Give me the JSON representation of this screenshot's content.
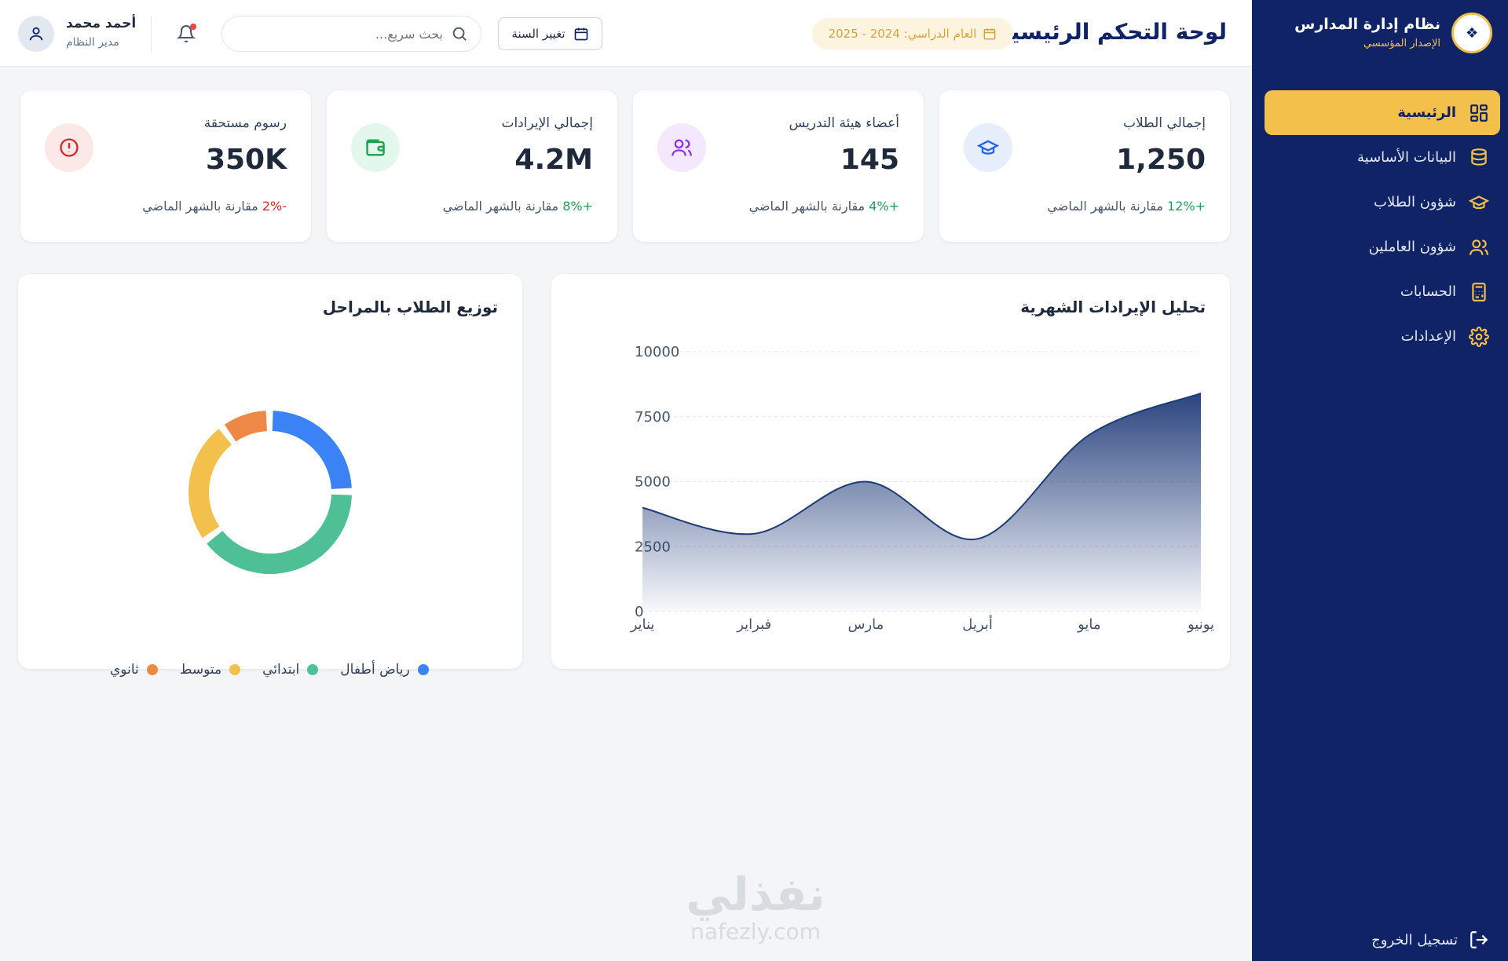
{
  "sidebar": {
    "brand_title": "نظام إدارة المدارس",
    "brand_subtitle": "الإصدار المؤسسي",
    "items": [
      {
        "label": "الرئيسية",
        "icon": "grid-icon",
        "active": true
      },
      {
        "label": "البيانات الأساسية",
        "icon": "database-icon",
        "active": false
      },
      {
        "label": "شؤون الطلاب",
        "icon": "graduation-cap-icon",
        "active": false
      },
      {
        "label": "شؤون العاملين",
        "icon": "users-icon",
        "active": false
      },
      {
        "label": "الحسابات",
        "icon": "calculator-icon",
        "active": false
      },
      {
        "label": "الإعدادات",
        "icon": "gear-icon",
        "active": false
      }
    ],
    "logout_label": "تسجيل الخروج"
  },
  "header": {
    "title": "لوحة التحكم الرئيسية",
    "academic_year": "العام الدراسي: 2024 - 2025",
    "change_year_label": "تغيير السنة",
    "search_placeholder": "بحث سريع...",
    "user_name": "أحمد محمد",
    "user_role": "مدير النظام"
  },
  "stats": [
    {
      "label": "إجمالي الطلاب",
      "value": "1,250",
      "delta": "+12%",
      "trend_text": "مقارنة بالشهر الماضي",
      "icon": "graduation-cap-icon",
      "icon_color": "#2563eb",
      "icon_bg": "#e6eefc"
    },
    {
      "label": "أعضاء هيئة التدريس",
      "value": "145",
      "delta": "+4%",
      "trend_text": "مقارنة بالشهر الماضي",
      "icon": "users-icon",
      "icon_color": "#9333ea",
      "icon_bg": "#f3e8fd"
    },
    {
      "label": "إجمالي الإيرادات",
      "value": "4.2M",
      "delta": "+8%",
      "trend_text": "مقارنة بالشهر الماضي",
      "icon": "wallet-icon",
      "icon_color": "#16a34a",
      "icon_bg": "#e4f7ec"
    },
    {
      "label": "رسوم مستحقة",
      "value": "350K",
      "delta": "-2%",
      "trend_text": "مقارنة بالشهر الماضي",
      "icon": "alert-circle-icon",
      "icon_color": "#dc2626",
      "icon_bg": "#fde8e8"
    }
  ],
  "revenue_panel": {
    "title": "تحليل الإيرادات الشهرية"
  },
  "distribution_panel": {
    "title": "توزيع الطلاب بالمراحل"
  },
  "chart_data": [
    {
      "type": "area",
      "title": "تحليل الإيرادات الشهرية",
      "categories": [
        "يناير",
        "فبراير",
        "مارس",
        "أبريل",
        "مايو",
        "يونيو"
      ],
      "values": [
        4000,
        3000,
        5000,
        2800,
        6800,
        8400
      ],
      "ylim": [
        0,
        10000
      ],
      "yticks": [
        "0",
        "2500",
        "5000",
        "7500",
        "10000"
      ],
      "grid": true,
      "color": "#1e3a78"
    },
    {
      "type": "pie",
      "title": "توزيع الطلاب بالمراحل",
      "donut": true,
      "labels": [
        "رياض أطفال",
        "ابتدائي",
        "متوسط",
        "ثانوي"
      ],
      "values": [
        25,
        40,
        25,
        10
      ],
      "colors": [
        "#3b82f6",
        "#4fbf96",
        "#f3c14b",
        "#ee8847"
      ],
      "legend": "bottom"
    }
  ],
  "watermark": {
    "arabic": "نفذلي",
    "latin": "nafezly.com"
  }
}
